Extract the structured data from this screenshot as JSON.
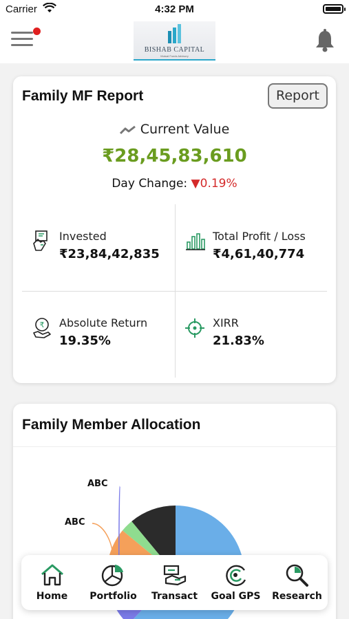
{
  "status_bar": {
    "carrier": "Carrier",
    "time": "4:32 PM"
  },
  "header": {
    "logo_text": "BISHAB CAPITAL",
    "logo_subtext": "Mutual Funds Advisory",
    "icons": [
      "menu-icon",
      "notification-dot",
      "bell-icon"
    ]
  },
  "report": {
    "title": "Family MF Report",
    "report_button": "Report",
    "current_value_label": "Current Value",
    "current_value": "₹28,45,83,610",
    "day_change_label": "Day Change:",
    "day_change_arrow": "▼",
    "day_change_value": "0.19%",
    "colors": {
      "value": "#6a9c1f",
      "negative": "#d42a2a",
      "icon": "#2a9a63"
    },
    "stats": {
      "invested": {
        "label": "Invested",
        "value": "₹23,84,42,835",
        "icon": "invest-hand-icon"
      },
      "profit": {
        "label": "Total Profit / Loss",
        "value": "₹4,61,40,774",
        "icon": "bar-chart-icon"
      },
      "absolute": {
        "label": "Absolute Return",
        "value": "19.35%",
        "icon": "rupee-hand-icon"
      },
      "xirr": {
        "label": "XIRR",
        "value": "21.83%",
        "icon": "target-icon"
      }
    }
  },
  "allocation": {
    "title": "Family Member Allocation",
    "labels": [
      "ABC",
      "ABC"
    ]
  },
  "chart_data": {
    "type": "pie",
    "title": "Family Member Allocation",
    "categories": [
      "ABC",
      "ABC",
      "",
      "",
      ""
    ],
    "values": [
      10,
      14,
      3,
      11,
      62
    ],
    "colors": [
      "#7b7be8",
      "#f5a05a",
      "#8fdc8f",
      "#2b2b2b",
      "#6aaee8"
    ]
  },
  "bottom_nav": {
    "items": [
      {
        "label": "Home",
        "icon": "home-icon"
      },
      {
        "label": "Portfolio",
        "icon": "portfolio-pie-icon"
      },
      {
        "label": "Transact",
        "icon": "transact-hand-icon"
      },
      {
        "label": "Goal GPS",
        "icon": "goal-gps-icon"
      },
      {
        "label": "Research",
        "icon": "research-magnifier-icon"
      }
    ]
  }
}
